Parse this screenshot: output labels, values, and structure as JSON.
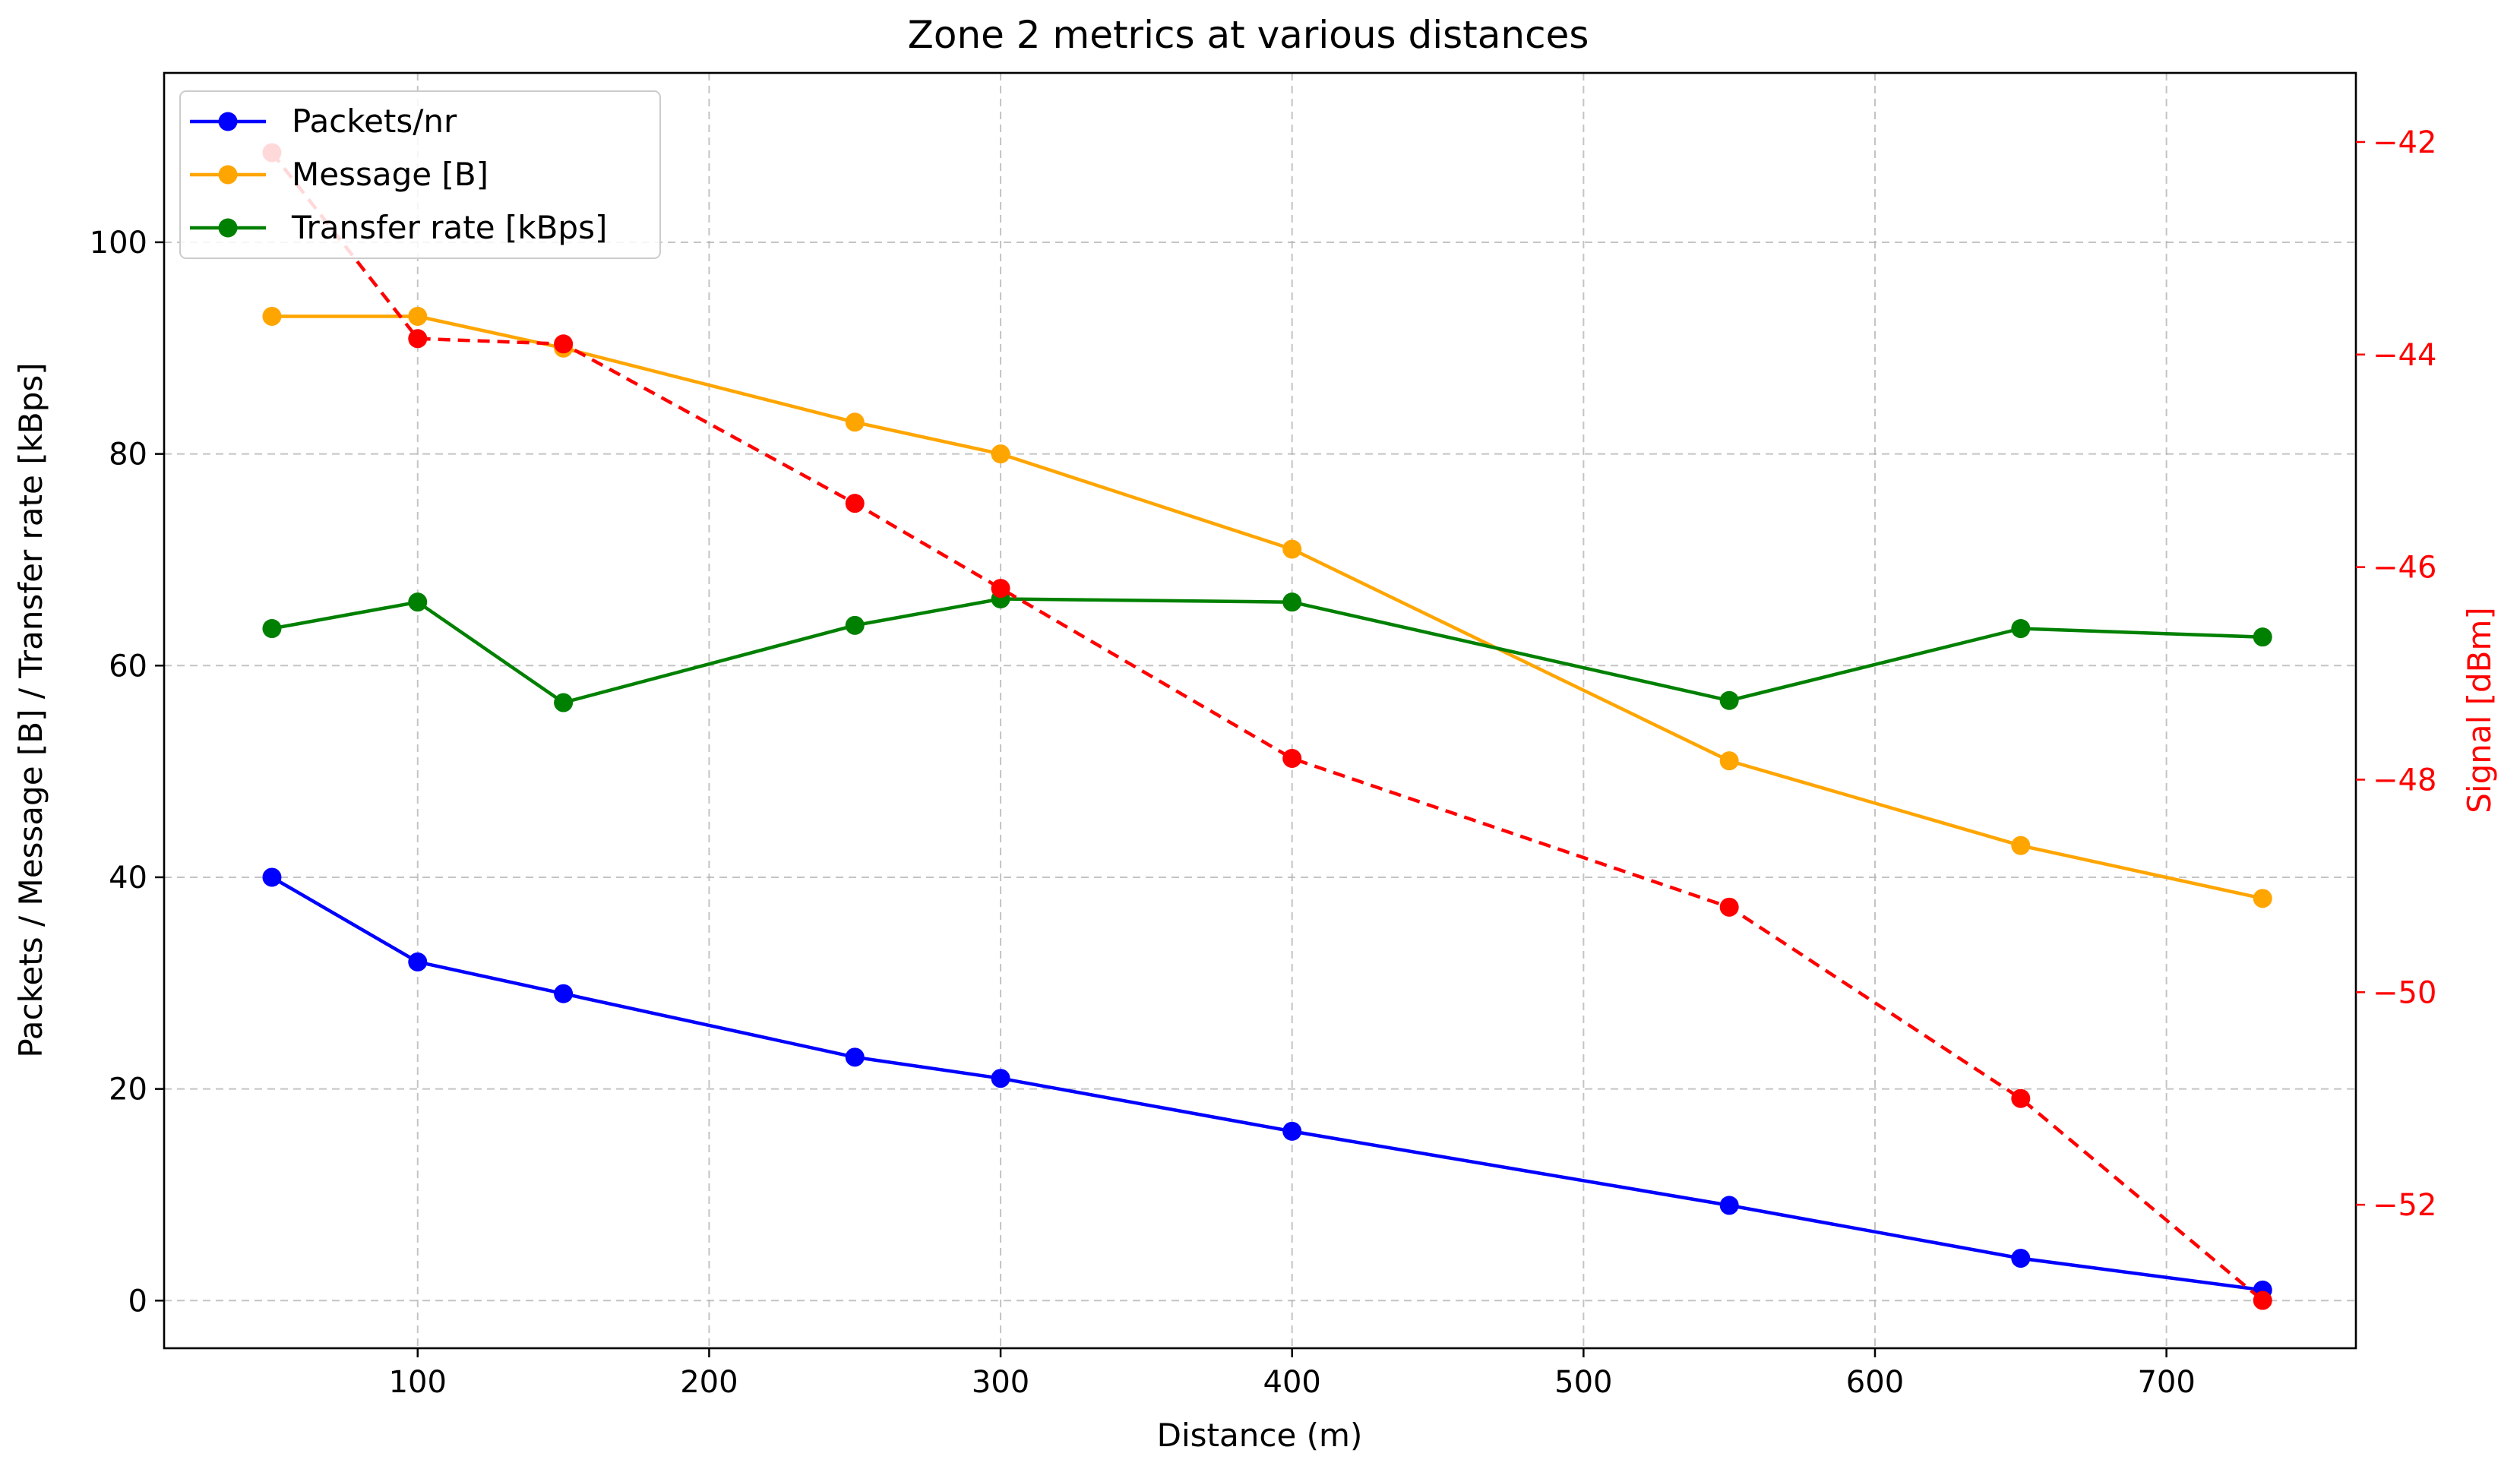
{
  "chart_data": {
    "type": "line",
    "title": "Zone 2 metrics at various distances",
    "xlabel": "Distance (m)",
    "ylabel": "Packets / Message [B] / Transfer rate [kBps]",
    "y2label": "Signal [dBm]",
    "xlim": [
      13,
      765
    ],
    "ylim": [
      -4.5,
      116
    ],
    "y2lim": [
      -53.35,
      -41.35
    ],
    "grid": true,
    "legend_position": "upper-left",
    "x": [
      50,
      100,
      150,
      250,
      300,
      400,
      550,
      650,
      733
    ],
    "x_ticks": [
      100,
      200,
      300,
      400,
      500,
      600,
      700
    ],
    "y_ticks": [
      0,
      20,
      40,
      60,
      80,
      100
    ],
    "y2_ticks": [
      -52,
      -50,
      -48,
      -46,
      -44,
      -42
    ],
    "x_tick_labels": [
      "100",
      "200",
      "300",
      "400",
      "500",
      "600",
      "700"
    ],
    "y_tick_labels": [
      "0",
      "20",
      "40",
      "60",
      "80",
      "100"
    ],
    "y2_tick_labels": [
      "−52",
      "−50",
      "−48",
      "−46",
      "−44",
      "−42"
    ],
    "series": [
      {
        "name": "Packets/nr",
        "axis": "left",
        "color": "#0000ff",
        "style": "solid",
        "in_legend": true,
        "values": [
          40,
          32,
          29,
          23,
          21,
          16,
          9,
          4,
          1
        ]
      },
      {
        "name": "Message [B]",
        "axis": "left",
        "color": "#ffa500",
        "style": "solid",
        "in_legend": true,
        "values": [
          93,
          93,
          90,
          83,
          80,
          71,
          51,
          43,
          38
        ]
      },
      {
        "name": "Transfer rate [kBps]",
        "axis": "left",
        "color": "#008000",
        "style": "solid",
        "in_legend": true,
        "values": [
          63.5,
          66,
          56.5,
          63.8,
          66.3,
          66,
          56.7,
          63.5,
          62.7
        ]
      },
      {
        "name": "Signal",
        "axis": "right",
        "color": "#ff0000",
        "style": "dashed",
        "in_legend": false,
        "values": [
          -42.1,
          -43.85,
          -43.9,
          -45.4,
          -46.2,
          -47.8,
          -49.2,
          -51,
          -52.9
        ]
      }
    ]
  }
}
